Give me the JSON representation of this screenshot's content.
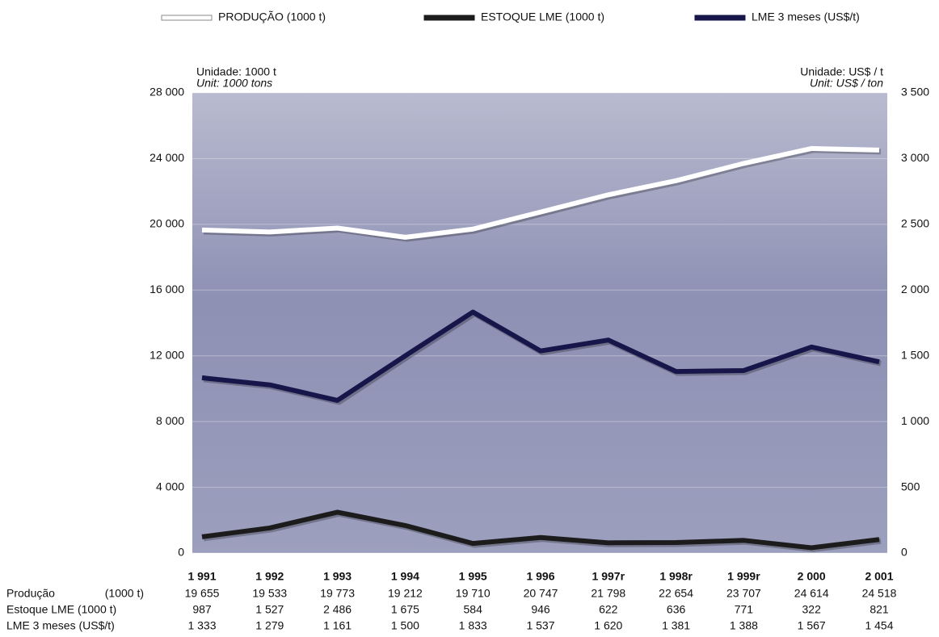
{
  "chart_data": {
    "type": "line",
    "categories": [
      "1 991",
      "1 992",
      "1 993",
      "1 994",
      "1 995",
      "1 996",
      "1 997r",
      "1 998r",
      "1 999r",
      "2 000",
      "2 001"
    ],
    "series": [
      {
        "name": "PRODUÇÃO (1000 t)",
        "color": "#ffffff",
        "row_label": [
          "Produção",
          "(1000 t)"
        ],
        "values": [
          19655,
          19533,
          19773,
          19212,
          19710,
          20747,
          21798,
          22654,
          23707,
          24614,
          24518
        ],
        "value_labels": [
          "19 655",
          "19 533",
          "19 773",
          "19 212",
          "19 710",
          "20 747",
          "21 798",
          "22 654",
          "23 707",
          "24 614",
          "24 518"
        ]
      },
      {
        "name": "ESTOQUE LME (1000 t)",
        "color": "#1c1c1c",
        "row_label": [
          "Estoque LME (1000 t)"
        ],
        "values": [
          987,
          1527,
          2486,
          1675,
          584,
          946,
          622,
          636,
          771,
          322,
          821
        ],
        "value_labels": [
          "987",
          "1 527",
          "2 486",
          "1 675",
          "584",
          "946",
          "622",
          "636",
          "771",
          "322",
          "821"
        ]
      },
      {
        "name": "LME 3 meses (US$/t)",
        "color": "#16164a",
        "axis": "y2",
        "row_label": [
          "LME 3 meses  (US$/t)"
        ],
        "values": [
          1333,
          1279,
          1161,
          1500,
          1833,
          1537,
          1620,
          1381,
          1388,
          1567,
          1454
        ],
        "value_labels": [
          "1 333",
          "1 279",
          "1 161",
          "1 500",
          "1 833",
          "1 537",
          "1 620",
          "1 381",
          "1 388",
          "1 567",
          "1 454"
        ]
      }
    ],
    "ylim": [
      0,
      28000
    ],
    "yticks": [
      0,
      {
        "value": 4000,
        "label": "4 000"
      },
      {
        "value": 8000,
        "label": "8 000"
      },
      {
        "value": 12000,
        "label": "12 000"
      },
      {
        "value": 16000,
        "label": "16 000"
      },
      {
        "value": 20000,
        "label": "20 000"
      },
      {
        "value": 24000,
        "label": "24 000"
      },
      {
        "value": 28000,
        "label": "28 000"
      }
    ],
    "y2lim": [
      0,
      3500
    ],
    "y2ticks": [
      0,
      500,
      {
        "value": 1000,
        "label": "1 000"
      },
      {
        "value": 1500,
        "label": "1 500"
      },
      {
        "value": 2000,
        "label": "2 000"
      },
      {
        "value": 2500,
        "label": "2 500"
      },
      {
        "value": 3000,
        "label": "3 000"
      },
      {
        "value": 3500,
        "label": "3 500"
      }
    ],
    "y_unit": [
      "Unidade: 1000 t",
      "Unit: 1000 tons"
    ],
    "y2_unit": [
      "Unidade: US$ / t",
      "Unit: US$ / ton"
    ],
    "grid": true
  }
}
